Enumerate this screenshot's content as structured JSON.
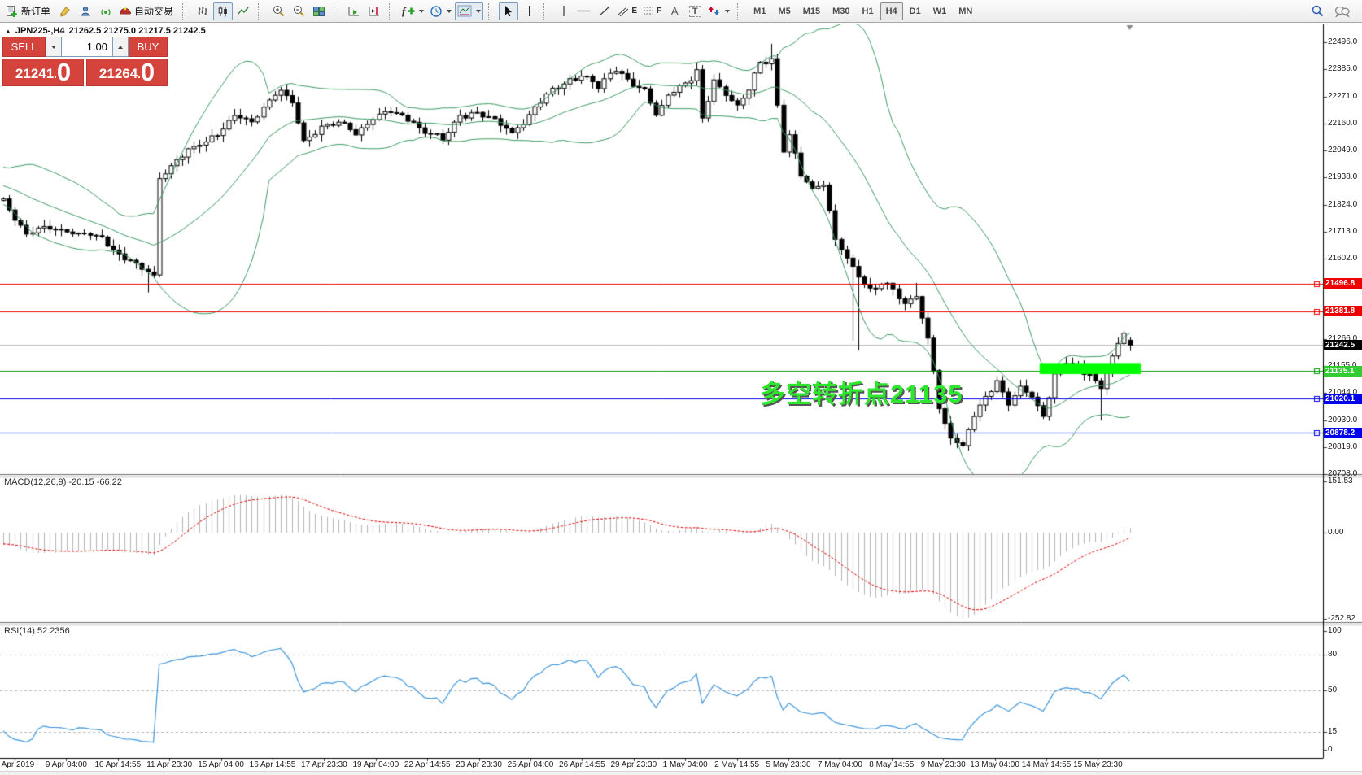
{
  "toolbar": {
    "new_order": "新订单",
    "auto_trading": "自动交易",
    "timeframes": [
      "M1",
      "M5",
      "M15",
      "M30",
      "H1",
      "H4",
      "D1",
      "W1",
      "MN"
    ],
    "selected_timeframe": "H4",
    "icon_glyphs": {
      "channel": "E",
      "fibonacci": "F",
      "text_tool": "A",
      "label_tool": "T",
      "indicator": "f"
    }
  },
  "symbol_info": {
    "title": "JPN225-,H4",
    "ohlc": "21262.5 21275.0 21217.5 21242.5"
  },
  "trade_panel": {
    "sell_label": "SELL",
    "buy_label": "BUY",
    "volume": "1.00",
    "sell_price": {
      "main": "21241",
      "dot": ".",
      "pips": "0"
    },
    "buy_price": {
      "main": "21264",
      "dot": ".",
      "pips": "0"
    }
  },
  "annotation": {
    "text": "多空转折点21135"
  },
  "panels": {
    "macd_label": "MACD(12,26,9) -20.15 -66.22",
    "rsi_label": "RSI(14) 52.2356"
  },
  "chart_data": {
    "type": "candlestick",
    "title": "JPN225-,H4",
    "period": "H4",
    "last_bar": {
      "open": 21262.5,
      "high": 21275.0,
      "low": 21217.5,
      "close": 21242.5
    },
    "bid": 21241.0,
    "ask": 21264.0,
    "y_ticks": [
      22496.0,
      22385.0,
      22271.0,
      22160.0,
      22049.0,
      21938.0,
      21824.0,
      21713.0,
      21602.0,
      21491.0,
      21377.0,
      21266.0,
      21155.0,
      21044.0,
      20930.0,
      20819.0,
      20708.0
    ],
    "x_labels": [
      "7 Apr 2019",
      "9 Apr 04:00",
      "10 Apr 14:55",
      "11 Apr 23:30",
      "15 Apr 04:00",
      "16 Apr 14:55",
      "17 Apr 23:30",
      "19 Apr 04:00",
      "22 Apr 14:55",
      "23 Apr 23:30",
      "25 Apr 04:00",
      "26 Apr 14:55",
      "29 Apr 23:30",
      "1 May 04:00",
      "2 May 14:55",
      "5 May 23:30",
      "7 May 04:00",
      "8 May 14:55",
      "9 May 23:30",
      "13 May 04:00",
      "14 May 14:55",
      "15 May 23:30"
    ],
    "levels": [
      {
        "value": 21496.8,
        "line_color": "#ee0000",
        "badge_color": "#ee0000",
        "type": "resistance"
      },
      {
        "value": 21381.8,
        "line_color": "#ee0000",
        "badge_color": "#ee0000",
        "type": "resistance"
      },
      {
        "value": 21135.1,
        "line_color": "#009900",
        "badge_color": "#32cd32",
        "type": "pivot"
      },
      {
        "value": 21020.1,
        "line_color": "#0000ee",
        "badge_color": "#0000ee",
        "type": "support"
      },
      {
        "value": 20878.2,
        "line_color": "#0000ee",
        "badge_color": "#0000ee",
        "type": "support"
      }
    ],
    "current_price": {
      "value": 21242.5,
      "line_color": "#b9b9b9",
      "badge_color": "#000000"
    },
    "highlight_zone": {
      "from_bar": 179.4,
      "to_bar": 196.9,
      "price_top": 21168,
      "price_bottom": 21122,
      "color": "#00ff00"
    },
    "indicators": {
      "bollinger": {
        "period": 20,
        "deviation": 2,
        "color": "#3c9a63"
      },
      "macd": {
        "fast": 12,
        "slow": 26,
        "signal_period": 9,
        "main": -20.15,
        "signal": -66.22,
        "axis": [
          {
            "v": 151.53,
            "label": "151.53"
          },
          {
            "v": 0,
            "label": "0.00"
          },
          {
            "v": -252.82,
            "label": "-252.82"
          }
        ],
        "histogram_color": "#b4b4b4",
        "signal_color": "#e00000"
      },
      "rsi": {
        "period": 14,
        "value": 52.2356,
        "levels": [
          80,
          50,
          15
        ],
        "axis": [
          {
            "v": 100,
            "label": "100"
          },
          {
            "v": 80,
            "label": "80"
          },
          {
            "v": 50,
            "label": "50"
          },
          {
            "v": 15,
            "label": "15"
          },
          {
            "v": 0,
            "label": "0"
          }
        ],
        "line_color": "#3e96dc"
      }
    },
    "bars": 196,
    "close_anchors": [
      [
        0,
        21840
      ],
      [
        4,
        21700
      ],
      [
        8,
        21730
      ],
      [
        13,
        21700
      ],
      [
        17,
        21690
      ],
      [
        20,
        21620
      ],
      [
        23,
        21570
      ],
      [
        26,
        21530
      ],
      [
        27,
        21940
      ],
      [
        30,
        22010
      ],
      [
        34,
        22080
      ],
      [
        37,
        22120
      ],
      [
        40,
        22190
      ],
      [
        43,
        22170
      ],
      [
        46,
        22260
      ],
      [
        48,
        22300
      ],
      [
        50,
        22240
      ],
      [
        52,
        22090
      ],
      [
        55,
        22150
      ],
      [
        58,
        22160
      ],
      [
        61,
        22120
      ],
      [
        64,
        22180
      ],
      [
        67,
        22210
      ],
      [
        70,
        22180
      ],
      [
        73,
        22130
      ],
      [
        76,
        22090
      ],
      [
        79,
        22190
      ],
      [
        82,
        22210
      ],
      [
        85,
        22170
      ],
      [
        88,
        22120
      ],
      [
        91,
        22190
      ],
      [
        94,
        22280
      ],
      [
        97,
        22330
      ],
      [
        100,
        22360
      ],
      [
        103,
        22310
      ],
      [
        106,
        22390
      ],
      [
        108,
        22340
      ],
      [
        111,
        22290
      ],
      [
        113,
        22190
      ],
      [
        115,
        22280
      ],
      [
        117,
        22310
      ],
      [
        119,
        22340
      ],
      [
        120,
        22370
      ],
      [
        121,
        22180
      ],
      [
        123,
        22340
      ],
      [
        125,
        22280
      ],
      [
        127,
        22230
      ],
      [
        129,
        22300
      ],
      [
        131,
        22410
      ],
      [
        133,
        22430
      ],
      [
        135,
        22050
      ],
      [
        136,
        22110
      ],
      [
        138,
        21940
      ],
      [
        140,
        21890
      ],
      [
        142,
        21910
      ],
      [
        144,
        21680
      ],
      [
        146,
        21600
      ],
      [
        148,
        21520
      ],
      [
        150,
        21470
      ],
      [
        152,
        21500
      ],
      [
        154,
        21480
      ],
      [
        156,
        21400
      ],
      [
        158,
        21450
      ],
      [
        160,
        21270
      ],
      [
        161,
        21150
      ],
      [
        162,
        20980
      ],
      [
        164,
        20850
      ],
      [
        166,
        20820
      ],
      [
        168,
        20960
      ],
      [
        170,
        21030
      ],
      [
        172,
        21090
      ],
      [
        174,
        20990
      ],
      [
        176,
        21070
      ],
      [
        178,
        21030
      ],
      [
        180,
        20950
      ],
      [
        182,
        21110
      ],
      [
        184,
        21170
      ],
      [
        186,
        21150
      ],
      [
        188,
        21120
      ],
      [
        190,
        21060
      ],
      [
        192,
        21190
      ],
      [
        194,
        21300
      ],
      [
        195,
        21242.5
      ]
    ],
    "wick_overrides": {
      "25": {
        "low": 21460
      },
      "133": {
        "high": 22490
      },
      "147": {
        "low": 21260
      },
      "148": {
        "low": 21220
      },
      "158": {
        "high": 21500
      },
      "190": {
        "low": 20930
      }
    }
  }
}
